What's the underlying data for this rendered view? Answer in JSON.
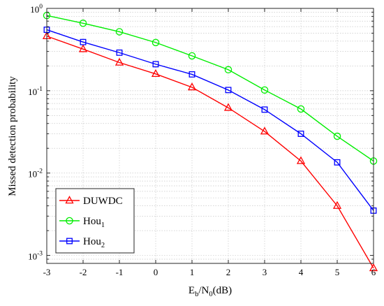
{
  "chart_data": {
    "type": "line",
    "xlabel": {
      "main": "E",
      "sub1": "b",
      "mid": "/N",
      "sub2": "0",
      "tail": "(dB)"
    },
    "ylabel": "Missed detection probability",
    "x": [
      -3,
      -2,
      -1,
      0,
      1,
      2,
      3,
      4,
      5,
      6
    ],
    "xlim": [
      -3,
      6
    ],
    "ylim": [
      0.0008,
      1
    ],
    "yscale": "log",
    "grid": true,
    "legend_position": "bottom-left",
    "xticks": [
      "-3",
      "-2",
      "-1",
      "0",
      "1",
      "2",
      "3",
      "4",
      "5",
      "6"
    ],
    "yticks": [
      {
        "base": "10",
        "exp": "0",
        "value": 1
      },
      {
        "base": "10",
        "exp": "-1",
        "value": 0.1
      },
      {
        "base": "10",
        "exp": "-2",
        "value": 0.01
      },
      {
        "base": "10",
        "exp": "-3",
        "value": 0.001
      }
    ],
    "series": [
      {
        "name": "DUWDC",
        "name_sub": "",
        "color": "#ff0000",
        "marker": "triangle",
        "values": [
          0.46,
          0.32,
          0.22,
          0.16,
          0.11,
          0.062,
          0.032,
          0.014,
          0.004,
          0.0007
        ]
      },
      {
        "name": "Hou",
        "name_sub": "1",
        "color": "#00ee00",
        "marker": "circle",
        "values": [
          0.82,
          0.66,
          0.52,
          0.385,
          0.265,
          0.18,
          0.102,
          0.06,
          0.028,
          0.014
        ]
      },
      {
        "name": "Hou",
        "name_sub": "2",
        "color": "#0000ff",
        "marker": "square",
        "values": [
          0.55,
          0.39,
          0.29,
          0.21,
          0.158,
          0.102,
          0.059,
          0.03,
          0.0135,
          0.0035
        ]
      }
    ]
  }
}
